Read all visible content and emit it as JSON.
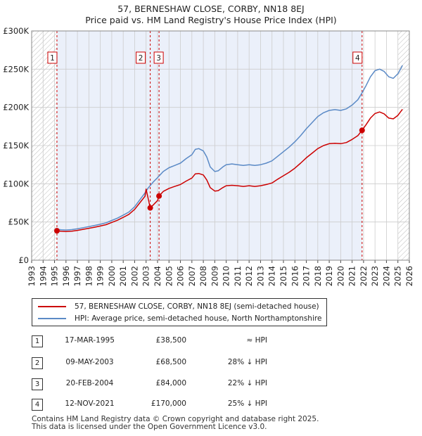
{
  "title": "57, BERNESHAW CLOSE, CORBY, NN18 8EJ",
  "subtitle": "Price paid vs. HM Land Registry's House Price Index (HPI)",
  "colors": {
    "property": "#cc0000",
    "hpi": "#5b8ac6",
    "shade": "#dde6f7",
    "grid": "#cccccc",
    "marker": "#cc0000"
  },
  "chart_data": {
    "type": "line",
    "title": "57, BERNESHAW CLOSE, CORBY, NN18 8EJ",
    "xlabel": "",
    "ylabel": "",
    "xlim": [
      1993,
      2026
    ],
    "ylim": [
      0,
      300000
    ],
    "y_ticks": [
      {
        "value": 0,
        "label": "£0"
      },
      {
        "value": 50000,
        "label": "£50K"
      },
      {
        "value": 100000,
        "label": "£100K"
      },
      {
        "value": 150000,
        "label": "£150K"
      },
      {
        "value": 200000,
        "label": "£200K"
      },
      {
        "value": 250000,
        "label": "£250K"
      },
      {
        "value": 300000,
        "label": "£300K"
      }
    ],
    "x_ticks": [
      "1993",
      "1994",
      "1995",
      "1996",
      "1997",
      "1998",
      "1999",
      "2000",
      "2001",
      "2002",
      "2003",
      "2004",
      "2005",
      "2006",
      "2007",
      "2008",
      "2009",
      "2010",
      "2011",
      "2012",
      "2013",
      "2014",
      "2015",
      "2016",
      "2017",
      "2018",
      "2019",
      "2020",
      "2021",
      "2022",
      "2023",
      "2024",
      "2025",
      "2026"
    ],
    "shaded_region": [
      1995.2,
      2021.87
    ],
    "hatch_before": 1995.2,
    "hatch_after": 2025.0,
    "series": [
      {
        "name": "HPI: Average price, semi-detached house, North Northamptonshire",
        "color": "#5b8ac6",
        "points": [
          [
            1995.2,
            40500
          ],
          [
            1995.6,
            39800
          ],
          [
            1996.0,
            39500
          ],
          [
            1996.5,
            40000
          ],
          [
            1997.0,
            41000
          ],
          [
            1997.5,
            42500
          ],
          [
            1998.0,
            44000
          ],
          [
            1998.5,
            45500
          ],
          [
            1999.0,
            47000
          ],
          [
            1999.5,
            49000
          ],
          [
            2000.0,
            52000
          ],
          [
            2000.5,
            55000
          ],
          [
            2001.0,
            59000
          ],
          [
            2001.5,
            63000
          ],
          [
            2002.0,
            70000
          ],
          [
            2002.5,
            80000
          ],
          [
            2002.9,
            88000
          ],
          [
            2003.2,
            95000
          ],
          [
            2003.6,
            102000
          ],
          [
            2004.0,
            108000
          ],
          [
            2004.5,
            116000
          ],
          [
            2005.0,
            121000
          ],
          [
            2005.5,
            124000
          ],
          [
            2006.0,
            127000
          ],
          [
            2006.5,
            133000
          ],
          [
            2007.0,
            138000
          ],
          [
            2007.3,
            145000
          ],
          [
            2007.6,
            146000
          ],
          [
            2008.0,
            143000
          ],
          [
            2008.3,
            135000
          ],
          [
            2008.6,
            122000
          ],
          [
            2009.0,
            116000
          ],
          [
            2009.3,
            117000
          ],
          [
            2009.7,
            122000
          ],
          [
            2010.0,
            125000
          ],
          [
            2010.5,
            126000
          ],
          [
            2011.0,
            125000
          ],
          [
            2011.5,
            124000
          ],
          [
            2012.0,
            125000
          ],
          [
            2012.5,
            124000
          ],
          [
            2013.0,
            125000
          ],
          [
            2013.5,
            127000
          ],
          [
            2014.0,
            130000
          ],
          [
            2014.5,
            136000
          ],
          [
            2015.0,
            142000
          ],
          [
            2015.5,
            148000
          ],
          [
            2016.0,
            155000
          ],
          [
            2016.5,
            163000
          ],
          [
            2017.0,
            172000
          ],
          [
            2017.5,
            180000
          ],
          [
            2018.0,
            188000
          ],
          [
            2018.5,
            193000
          ],
          [
            2019.0,
            196000
          ],
          [
            2019.5,
            197000
          ],
          [
            2020.0,
            196000
          ],
          [
            2020.5,
            198000
          ],
          [
            2021.0,
            203000
          ],
          [
            2021.5,
            210000
          ],
          [
            2021.87,
            219000
          ],
          [
            2022.2,
            228000
          ],
          [
            2022.6,
            240000
          ],
          [
            2023.0,
            248000
          ],
          [
            2023.4,
            250000
          ],
          [
            2023.8,
            247000
          ],
          [
            2024.2,
            240000
          ],
          [
            2024.6,
            238000
          ],
          [
            2025.0,
            244000
          ],
          [
            2025.3,
            252000
          ],
          [
            2025.4,
            255000
          ]
        ]
      },
      {
        "name": "57, BERNESHAW CLOSE, CORBY, NN18 8EJ (semi-detached house)",
        "color": "#cc0000",
        "points": [
          [
            1995.2,
            38500
          ],
          [
            1995.6,
            37800
          ],
          [
            1996.0,
            37500
          ],
          [
            1996.5,
            38000
          ],
          [
            1997.0,
            39000
          ],
          [
            1997.5,
            40400
          ],
          [
            1998.0,
            41800
          ],
          [
            1998.5,
            43200
          ],
          [
            1999.0,
            44700
          ],
          [
            1999.5,
            46500
          ],
          [
            2000.0,
            49400
          ],
          [
            2000.5,
            52300
          ],
          [
            2001.0,
            56000
          ],
          [
            2001.5,
            60000
          ],
          [
            2002.0,
            66500
          ],
          [
            2002.5,
            76000
          ],
          [
            2002.9,
            83600
          ],
          [
            2003.0,
            93000
          ],
          [
            2003.36,
            68500
          ],
          [
            2003.6,
            72000
          ],
          [
            2004.0,
            78000
          ],
          [
            2004.13,
            84000
          ],
          [
            2004.5,
            90000
          ],
          [
            2005.0,
            94000
          ],
          [
            2005.5,
            96500
          ],
          [
            2006.0,
            99000
          ],
          [
            2006.5,
            103500
          ],
          [
            2007.0,
            107500
          ],
          [
            2007.3,
            113000
          ],
          [
            2007.6,
            113500
          ],
          [
            2008.0,
            111500
          ],
          [
            2008.3,
            105000
          ],
          [
            2008.6,
            95000
          ],
          [
            2009.0,
            90500
          ],
          [
            2009.3,
            91000
          ],
          [
            2009.7,
            95000
          ],
          [
            2010.0,
            97500
          ],
          [
            2010.5,
            98000
          ],
          [
            2011.0,
            97500
          ],
          [
            2011.5,
            96500
          ],
          [
            2012.0,
            97500
          ],
          [
            2012.5,
            96500
          ],
          [
            2013.0,
            97500
          ],
          [
            2013.5,
            99000
          ],
          [
            2014.0,
            101000
          ],
          [
            2014.5,
            106000
          ],
          [
            2015.0,
            110500
          ],
          [
            2015.5,
            115000
          ],
          [
            2016.0,
            120500
          ],
          [
            2016.5,
            127000
          ],
          [
            2017.0,
            134000
          ],
          [
            2017.5,
            140000
          ],
          [
            2018.0,
            146000
          ],
          [
            2018.5,
            150000
          ],
          [
            2019.0,
            152500
          ],
          [
            2019.5,
            153000
          ],
          [
            2020.0,
            152500
          ],
          [
            2020.5,
            154000
          ],
          [
            2021.0,
            158000
          ],
          [
            2021.5,
            163000
          ],
          [
            2021.87,
            170000
          ],
          [
            2022.2,
            177000
          ],
          [
            2022.6,
            186000
          ],
          [
            2023.0,
            192000
          ],
          [
            2023.4,
            194000
          ],
          [
            2023.8,
            191500
          ],
          [
            2024.2,
            186000
          ],
          [
            2024.6,
            185000
          ],
          [
            2025.0,
            189500
          ],
          [
            2025.3,
            195500
          ],
          [
            2025.4,
            197500
          ]
        ]
      }
    ],
    "sales": [
      {
        "id": "1",
        "year": 1995.21,
        "price": 38500
      },
      {
        "id": "2",
        "year": 2003.36,
        "price": 68500
      },
      {
        "id": "3",
        "year": 2004.13,
        "price": 84000
      },
      {
        "id": "4",
        "year": 2021.87,
        "price": 170000
      }
    ]
  },
  "legend": {
    "property_label": "57, BERNESHAW CLOSE, CORBY, NN18 8EJ (semi-detached house)",
    "hpi_label": "HPI: Average price, semi-detached house, North Northamptonshire"
  },
  "transactions": [
    {
      "num": "1",
      "date": "17-MAR-1995",
      "price": "£38,500",
      "relation": "≈ HPI"
    },
    {
      "num": "2",
      "date": "09-MAY-2003",
      "price": "£68,500",
      "relation": "28% ↓ HPI"
    },
    {
      "num": "3",
      "date": "20-FEB-2004",
      "price": "£84,000",
      "relation": "22% ↓ HPI"
    },
    {
      "num": "4",
      "date": "12-NOV-2021",
      "price": "£170,000",
      "relation": "25% ↓ HPI"
    }
  ],
  "footer": {
    "line1": "Contains HM Land Registry data © Crown copyright and database right 2025.",
    "line2": "This data is licensed under the Open Government Licence v3.0."
  }
}
